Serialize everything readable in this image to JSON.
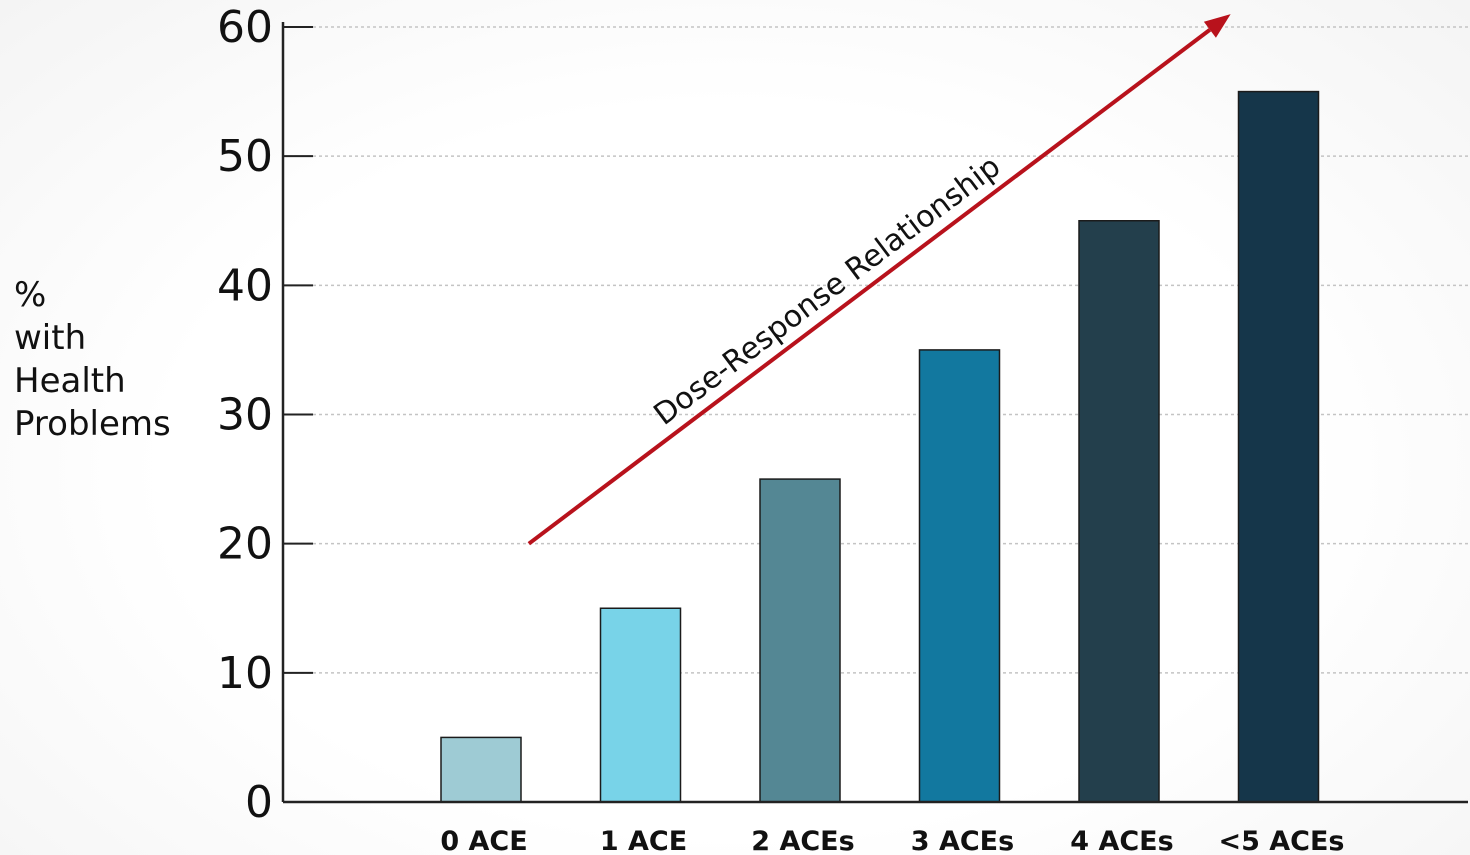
{
  "chart_data": {
    "type": "bar",
    "categories": [
      "0 ACE",
      "1 ACE",
      "2 ACEs",
      "3 ACEs",
      "4 ACEs",
      "<5 ACEs"
    ],
    "values": [
      5,
      15,
      25,
      35,
      45,
      55
    ],
    "bar_colors": [
      "#9ecbd4",
      "#78d3e8",
      "#548794",
      "#12789f",
      "#233f4c",
      "#15364a"
    ],
    "ylabel_lines": [
      "%",
      "with",
      "Health",
      "Problems"
    ],
    "ylim": [
      0,
      60
    ],
    "yticks": [
      0,
      10,
      20,
      30,
      40,
      50,
      60
    ],
    "grid": true,
    "annotation": {
      "text": "Dose-Response Relationship",
      "color": "#b8121c",
      "arrow_from": {
        "category_index": 0.3,
        "value": 20
      },
      "arrow_to": {
        "category_index": 4.7,
        "value": 61
      }
    }
  }
}
